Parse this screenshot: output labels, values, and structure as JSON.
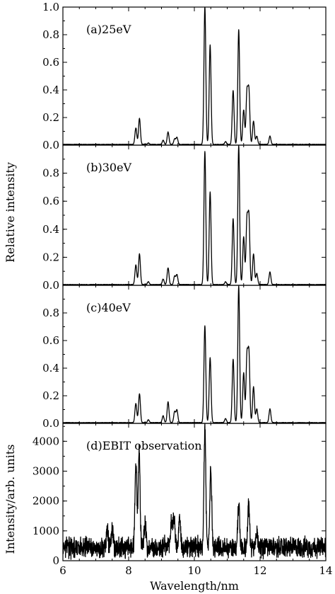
{
  "chart_data": [
    {
      "type": "line",
      "annotation": "(a)25eV",
      "ylabel": "Relative intensity",
      "xlim": [
        6,
        14
      ],
      "ylim": [
        0,
        1.0
      ],
      "yticks": [
        "0.0",
        "0.2",
        "0.4",
        "0.6",
        "0.8",
        "1.0"
      ],
      "peaks": [
        {
          "x": 8.22,
          "y": 0.12
        },
        {
          "x": 8.33,
          "y": 0.19
        },
        {
          "x": 8.6,
          "y": 0.01
        },
        {
          "x": 9.05,
          "y": 0.03
        },
        {
          "x": 9.2,
          "y": 0.09
        },
        {
          "x": 9.4,
          "y": 0.04
        },
        {
          "x": 9.47,
          "y": 0.05
        },
        {
          "x": 10.32,
          "y": 1.0
        },
        {
          "x": 10.48,
          "y": 0.72
        },
        {
          "x": 10.95,
          "y": 0.02
        },
        {
          "x": 11.18,
          "y": 0.39
        },
        {
          "x": 11.35,
          "y": 0.83
        },
        {
          "x": 11.5,
          "y": 0.25
        },
        {
          "x": 11.6,
          "y": 0.37
        },
        {
          "x": 11.66,
          "y": 0.38
        },
        {
          "x": 11.8,
          "y": 0.17
        },
        {
          "x": 11.9,
          "y": 0.06
        },
        {
          "x": 12.3,
          "y": 0.06
        }
      ]
    },
    {
      "type": "line",
      "annotation": "(b)30eV",
      "xlim": [
        6,
        14
      ],
      "ylim": [
        0,
        1.0
      ],
      "yticks": [
        "0.0",
        "0.2",
        "0.4",
        "0.6",
        "0.8"
      ],
      "peaks": [
        {
          "x": 8.22,
          "y": 0.14
        },
        {
          "x": 8.33,
          "y": 0.22
        },
        {
          "x": 8.6,
          "y": 0.02
        },
        {
          "x": 9.05,
          "y": 0.04
        },
        {
          "x": 9.2,
          "y": 0.12
        },
        {
          "x": 9.4,
          "y": 0.06
        },
        {
          "x": 9.47,
          "y": 0.07
        },
        {
          "x": 10.32,
          "y": 0.95
        },
        {
          "x": 10.48,
          "y": 0.66
        },
        {
          "x": 10.95,
          "y": 0.02
        },
        {
          "x": 11.18,
          "y": 0.47
        },
        {
          "x": 11.35,
          "y": 0.99
        },
        {
          "x": 11.5,
          "y": 0.34
        },
        {
          "x": 11.6,
          "y": 0.45
        },
        {
          "x": 11.66,
          "y": 0.47
        },
        {
          "x": 11.8,
          "y": 0.22
        },
        {
          "x": 11.9,
          "y": 0.08
        },
        {
          "x": 12.3,
          "y": 0.09
        }
      ]
    },
    {
      "type": "line",
      "annotation": "(c)40eV",
      "xlim": [
        6,
        14
      ],
      "ylim": [
        0,
        1.0
      ],
      "yticks": [
        "0.0",
        "0.2",
        "0.4",
        "0.6",
        "0.8"
      ],
      "peaks": [
        {
          "x": 8.22,
          "y": 0.14
        },
        {
          "x": 8.33,
          "y": 0.21
        },
        {
          "x": 8.6,
          "y": 0.02
        },
        {
          "x": 9.05,
          "y": 0.05
        },
        {
          "x": 9.2,
          "y": 0.15
        },
        {
          "x": 9.4,
          "y": 0.08
        },
        {
          "x": 9.47,
          "y": 0.09
        },
        {
          "x": 10.32,
          "y": 0.7
        },
        {
          "x": 10.48,
          "y": 0.47
        },
        {
          "x": 10.95,
          "y": 0.03
        },
        {
          "x": 11.18,
          "y": 0.46
        },
        {
          "x": 11.35,
          "y": 0.99
        },
        {
          "x": 11.5,
          "y": 0.36
        },
        {
          "x": 11.6,
          "y": 0.47
        },
        {
          "x": 11.66,
          "y": 0.49
        },
        {
          "x": 11.8,
          "y": 0.26
        },
        {
          "x": 11.9,
          "y": 0.1
        },
        {
          "x": 12.3,
          "y": 0.1
        }
      ]
    },
    {
      "type": "line",
      "annotation": "(d)EBIT observation",
      "ylabel": "Intensity/arb. units",
      "xlabel": "Wavelength/nm",
      "xlim": [
        6,
        14
      ],
      "ylim": [
        0,
        4600
      ],
      "yticks": [
        "0",
        "1000",
        "2000",
        "3000",
        "4000"
      ],
      "xticks": [
        "6",
        "8",
        "10",
        "12",
        "14"
      ],
      "baseline": 450,
      "noise_amplitude": 280,
      "peaks": [
        {
          "x": 8.22,
          "y": 3300
        },
        {
          "x": 8.32,
          "y": 3750
        },
        {
          "x": 8.5,
          "y": 1250
        },
        {
          "x": 7.35,
          "y": 1050
        },
        {
          "x": 7.5,
          "y": 1000
        },
        {
          "x": 9.3,
          "y": 1300
        },
        {
          "x": 9.38,
          "y": 1500
        },
        {
          "x": 9.55,
          "y": 1400
        },
        {
          "x": 10.32,
          "y": 4500
        },
        {
          "x": 10.5,
          "y": 3100
        },
        {
          "x": 11.35,
          "y": 1950
        },
        {
          "x": 11.65,
          "y": 1850
        },
        {
          "x": 11.9,
          "y": 1000
        }
      ]
    }
  ]
}
